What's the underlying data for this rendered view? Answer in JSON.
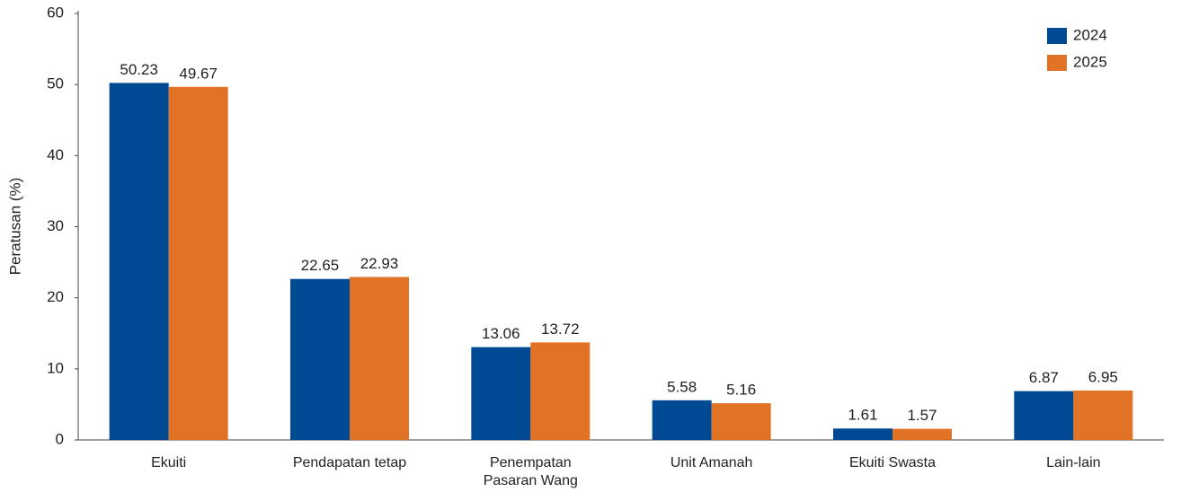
{
  "chart_data": {
    "type": "bar",
    "y_label": "Peratusan (%)",
    "categories": [
      "Ekuiti",
      "Pendapatan tetap",
      "Penempatan Pasaran Wang",
      "Unit Amanah",
      "Ekuiti Swasta",
      "Lain-lain"
    ],
    "series": [
      {
        "name": "2024",
        "color": "#004a93",
        "values": [
          50.23,
          22.65,
          13.06,
          5.58,
          1.61,
          6.87
        ]
      },
      {
        "name": "2025",
        "color": "#e07326",
        "values": [
          49.67,
          22.93,
          13.72,
          5.16,
          1.57,
          6.95
        ]
      }
    ],
    "ylim": [
      0,
      60
    ],
    "yticks": [
      0,
      10,
      20,
      30,
      40,
      50,
      60
    ],
    "grid": false,
    "legend": "top-right"
  }
}
